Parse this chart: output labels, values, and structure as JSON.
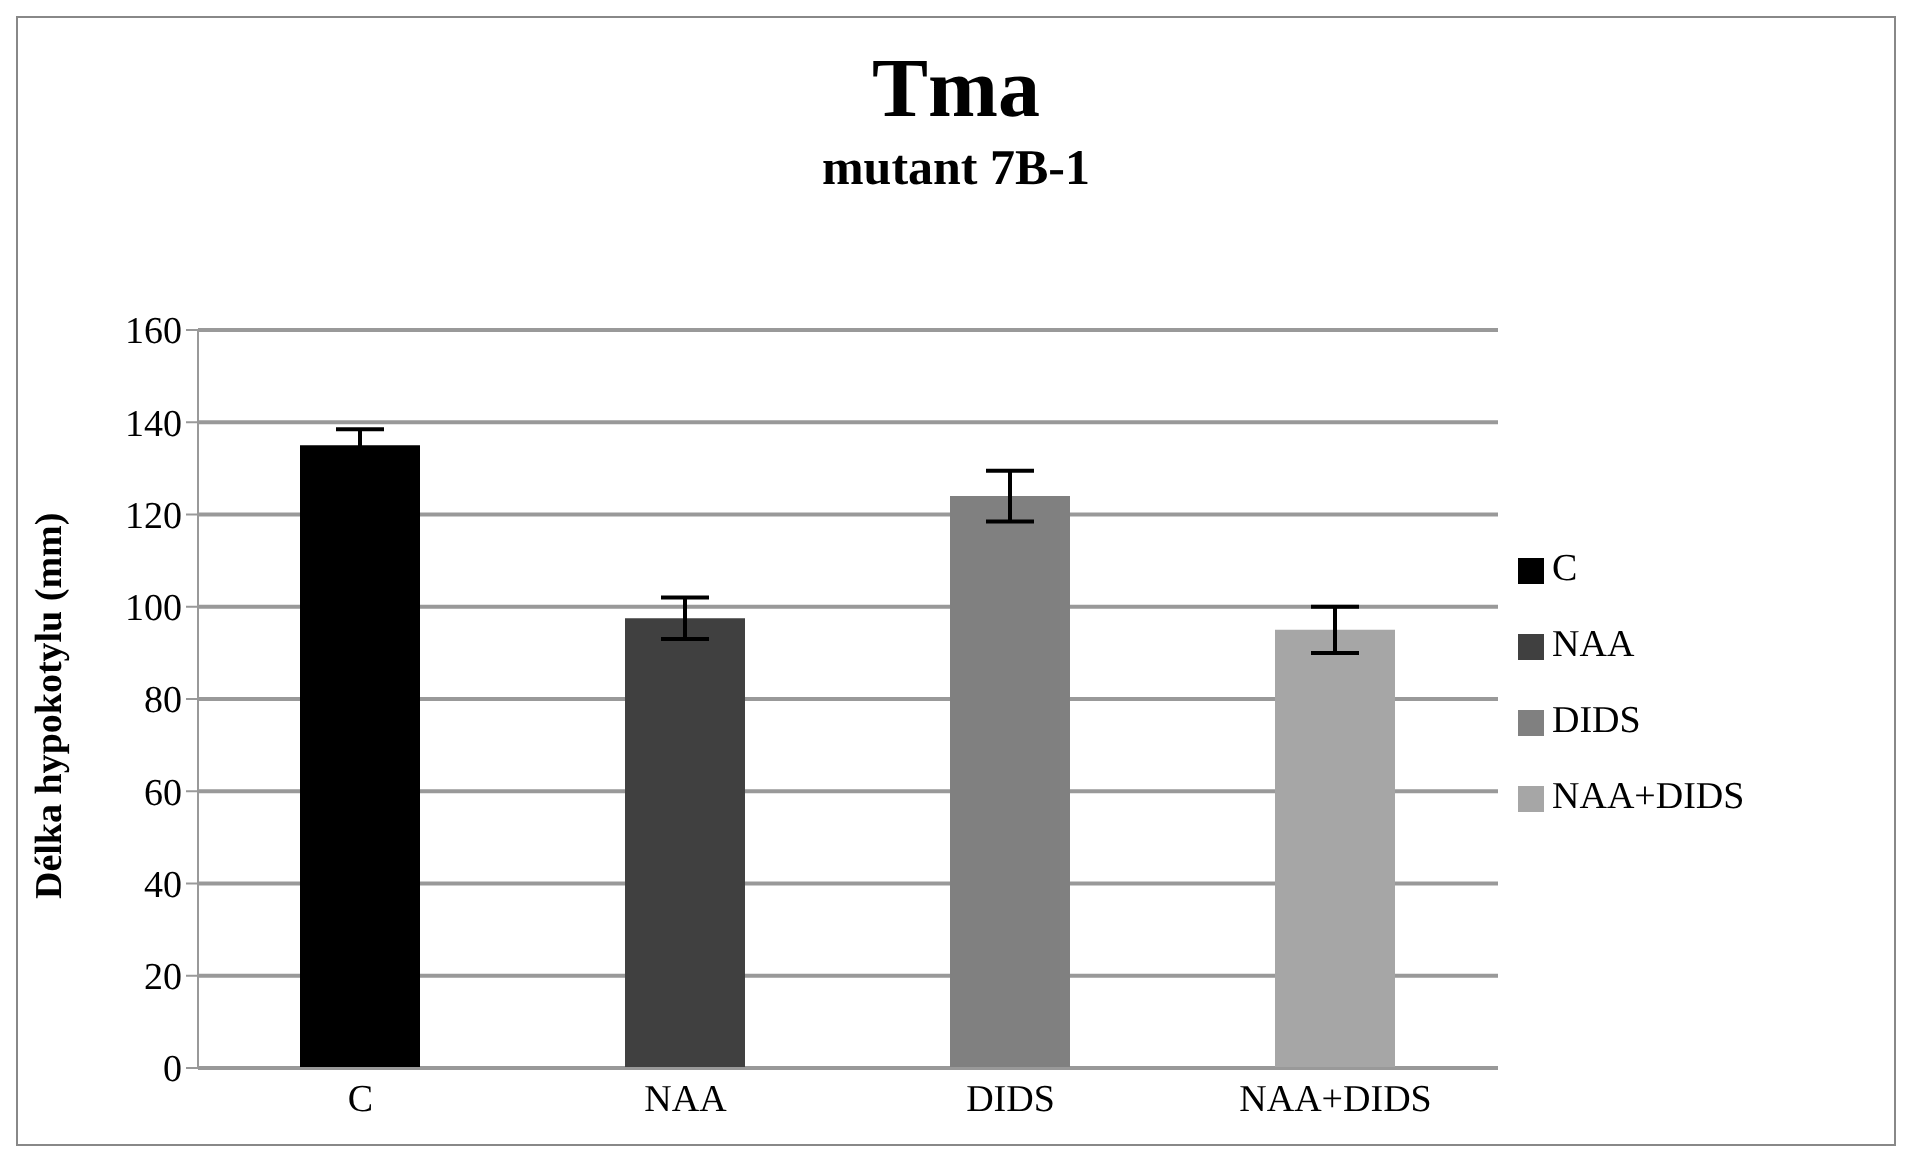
{
  "chart_data": {
    "type": "bar",
    "title": "Tma",
    "subtitle": "mutant 7B-1",
    "ylabel": "Délka hypokotylu (mm)",
    "categories": [
      "C",
      "NAA",
      "DIDS",
      "NAA+DIDS"
    ],
    "series": [
      {
        "name": "C",
        "color": "#000000",
        "values": [
          135,
          null,
          null,
          null
        ],
        "errors": [
          3.5,
          null,
          null,
          null
        ]
      },
      {
        "name": "NAA",
        "color": "#404040",
        "values": [
          null,
          97.5,
          null,
          null
        ],
        "errors": [
          null,
          4.5,
          null,
          null
        ]
      },
      {
        "name": "DIDS",
        "color": "#808080",
        "values": [
          null,
          null,
          124,
          null
        ],
        "errors": [
          null,
          null,
          5.5,
          null
        ]
      },
      {
        "name": "NAA+DIDS",
        "color": "#a6a6a6",
        "values": [
          null,
          null,
          null,
          95
        ],
        "errors": [
          null,
          null,
          null,
          5
        ]
      }
    ],
    "ylim": [
      0,
      160
    ],
    "yticks": [
      0,
      20,
      40,
      60,
      80,
      100,
      120,
      140,
      160
    ],
    "grid": "y",
    "legend": "right"
  }
}
